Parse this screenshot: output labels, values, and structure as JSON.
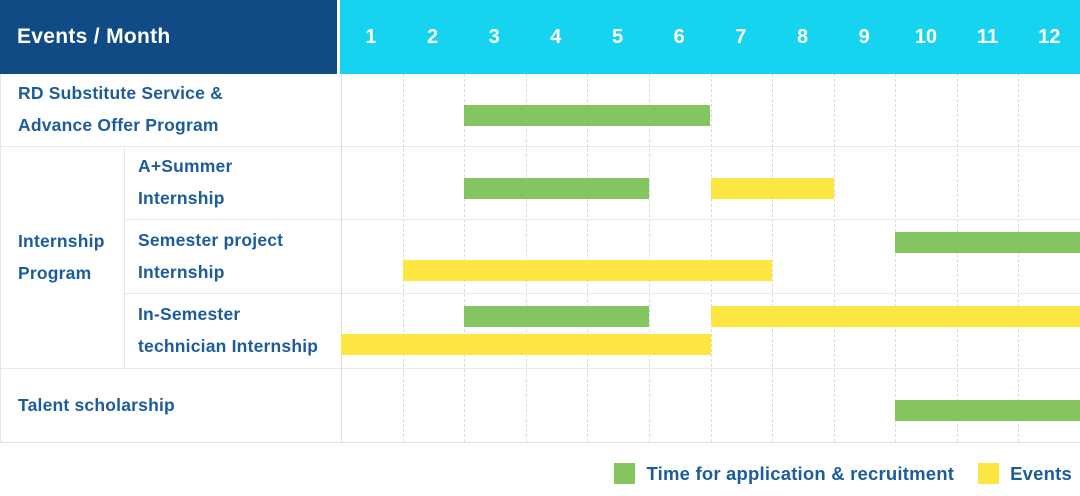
{
  "colors": {
    "navy": "#114b85",
    "cyan": "#16d3f0",
    "green": "#84c55f",
    "yellow": "#fde542",
    "text_blue": "#1d5c9b"
  },
  "table": {
    "corner_label": "Events / Month",
    "months": [
      "1",
      "2",
      "3",
      "4",
      "5",
      "6",
      "7",
      "8",
      "9",
      "10",
      "11",
      "12"
    ],
    "group": {
      "label_lines": [
        "Internship",
        "Program"
      ]
    },
    "rows": [
      {
        "label_lines": [
          "RD Substitute Service &",
          "Advance Offer Program"
        ],
        "bars": [
          {
            "color": "green",
            "start": 3,
            "end": 6,
            "level": "mid"
          }
        ]
      },
      {
        "label_lines": [
          "A+Summer",
          "Internship"
        ],
        "bars": [
          {
            "color": "green",
            "start": 3,
            "end": 5,
            "level": "mid"
          },
          {
            "color": "yellow",
            "start": 7,
            "end": 8,
            "level": "mid"
          }
        ]
      },
      {
        "label_lines": [
          "Semester project",
          "Internship"
        ],
        "bars": [
          {
            "color": "green",
            "start": 10,
            "end": 12,
            "level": "upper"
          },
          {
            "color": "yellow",
            "start": 2,
            "end": 7,
            "level": "lower"
          }
        ]
      },
      {
        "label_lines": [
          "In-Semester",
          "technician Internship"
        ],
        "bars": [
          {
            "color": "green",
            "start": 3,
            "end": 5,
            "level": "upper"
          },
          {
            "color": "yellow",
            "start": 7,
            "end": 12,
            "level": "upper"
          },
          {
            "color": "yellow",
            "start": 1,
            "end": 6,
            "level": "lower"
          }
        ]
      },
      {
        "label_lines": [
          "Talent scholarship"
        ],
        "bars": [
          {
            "color": "green",
            "start": 10,
            "end": 12,
            "level": "mid"
          }
        ]
      }
    ]
  },
  "legend": {
    "items": [
      {
        "color": "green",
        "label": "Time for application & recruitment"
      },
      {
        "color": "yellow",
        "label": "Events"
      }
    ]
  },
  "chart_data": {
    "type": "bar",
    "variant": "gantt",
    "title": "Events / Month",
    "xlabel": "Month",
    "x_ticks": [
      1,
      2,
      3,
      4,
      5,
      6,
      7,
      8,
      9,
      10,
      11,
      12
    ],
    "xlim": [
      1,
      12
    ],
    "grid": true,
    "legend_position": "bottom-right",
    "legend": [
      "Time for application & recruitment",
      "Events"
    ],
    "tasks": [
      {
        "row": "RD Substitute Service & Advance Offer Program",
        "group": null,
        "intervals": [
          {
            "kind": "Time for application & recruitment",
            "start_month": 3,
            "end_month": 6
          }
        ]
      },
      {
        "row": "A+Summer Internship",
        "group": "Internship Program",
        "intervals": [
          {
            "kind": "Time for application & recruitment",
            "start_month": 3,
            "end_month": 5
          },
          {
            "kind": "Events",
            "start_month": 7,
            "end_month": 8
          }
        ]
      },
      {
        "row": "Semester project Internship",
        "group": "Internship Program",
        "intervals": [
          {
            "kind": "Time for application & recruitment",
            "start_month": 10,
            "end_month": 12
          },
          {
            "kind": "Events",
            "start_month": 2,
            "end_month": 7
          }
        ]
      },
      {
        "row": "In-Semester technician Internship",
        "group": "Internship Program",
        "intervals": [
          {
            "kind": "Time for application & recruitment",
            "start_month": 3,
            "end_month": 5
          },
          {
            "kind": "Events",
            "start_month": 7,
            "end_month": 12
          },
          {
            "kind": "Events",
            "start_month": 1,
            "end_month": 6
          }
        ]
      },
      {
        "row": "Talent scholarship",
        "group": null,
        "intervals": [
          {
            "kind": "Time for application & recruitment",
            "start_month": 10,
            "end_month": 12
          }
        ]
      }
    ]
  }
}
